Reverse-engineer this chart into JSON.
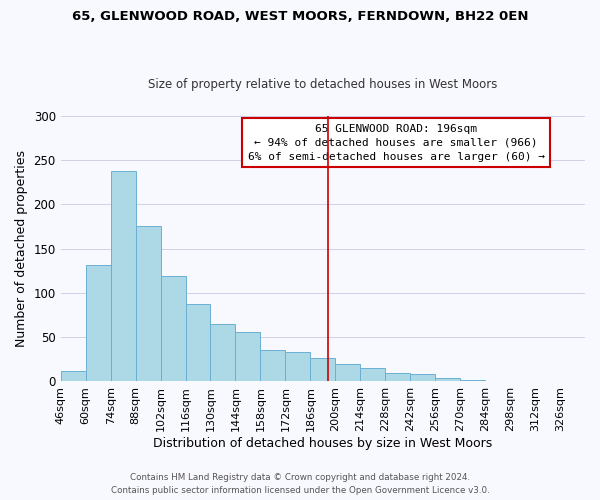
{
  "title": "65, GLENWOOD ROAD, WEST MOORS, FERNDOWN, BH22 0EN",
  "subtitle": "Size of property relative to detached houses in West Moors",
  "xlabel": "Distribution of detached houses by size in West Moors",
  "ylabel": "Number of detached properties",
  "footer_lines": [
    "Contains HM Land Registry data © Crown copyright and database right 2024.",
    "Contains public sector information licensed under the Open Government Licence v3.0."
  ],
  "bin_labels": [
    "46sqm",
    "60sqm",
    "74sqm",
    "88sqm",
    "102sqm",
    "116sqm",
    "130sqm",
    "144sqm",
    "158sqm",
    "172sqm",
    "186sqm",
    "200sqm",
    "214sqm",
    "228sqm",
    "242sqm",
    "256sqm",
    "270sqm",
    "284sqm",
    "298sqm",
    "312sqm",
    "326sqm"
  ],
  "bar_heights": [
    12,
    131,
    238,
    176,
    119,
    87,
    65,
    56,
    36,
    33,
    26,
    20,
    15,
    9,
    8,
    4,
    2,
    1,
    0,
    0,
    1
  ],
  "bar_color": "#add8e6",
  "bar_edge_color": "#6ab0d4",
  "vline_x": 196,
  "vline_color": "#cc0000",
  "annotation_line1": "65 GLENWOOD ROAD: 196sqm",
  "annotation_line2": "← 94% of detached houses are smaller (966)",
  "annotation_line3": "6% of semi-detached houses are larger (60) →",
  "annotation_box_edge_color": "#cc0000",
  "annotation_box_color": "#ffffff",
  "ylim": [
    0,
    300
  ],
  "yticks": [
    0,
    50,
    100,
    150,
    200,
    250,
    300
  ],
  "bin_edges_sqm": [
    46,
    60,
    74,
    88,
    102,
    116,
    130,
    144,
    158,
    172,
    186,
    200,
    214,
    228,
    242,
    256,
    270,
    284,
    298,
    312,
    326,
    340
  ],
  "background_color": "#f8f8ff",
  "grid_color": "#d0d0e8"
}
